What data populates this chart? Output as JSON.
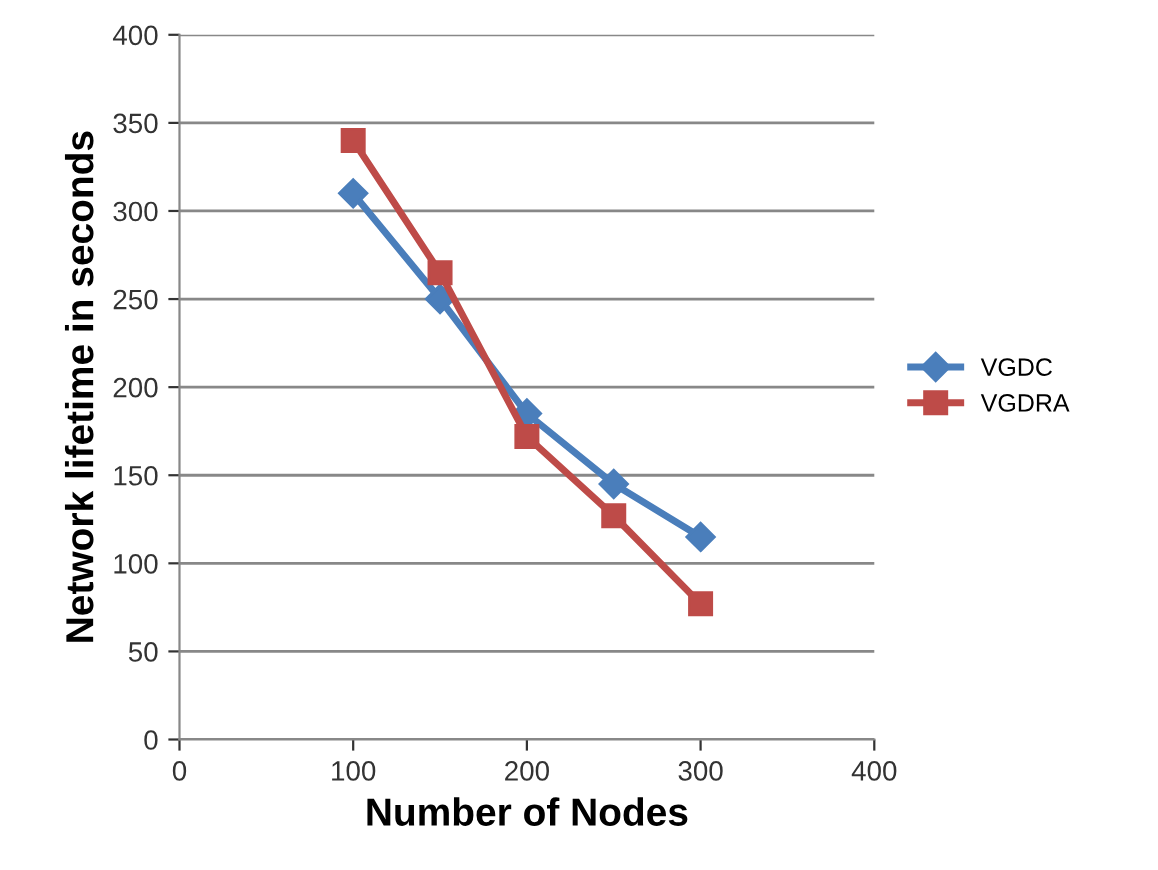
{
  "chart_data": {
    "type": "line",
    "xlabel": "Number of Nodes",
    "ylabel": "Network lifetime in seconds",
    "x": [
      100,
      150,
      200,
      250,
      300
    ],
    "series": [
      {
        "name": "VGDC",
        "color": "#4a7ebb",
        "marker": "diamond",
        "values": [
          310,
          250,
          185,
          145,
          115
        ]
      },
      {
        "name": "VGDRA",
        "color": "#be4b48",
        "marker": "square",
        "values": [
          340,
          265,
          172,
          127,
          77
        ]
      }
    ],
    "xlim": [
      0,
      400
    ],
    "xticks": [
      0,
      100,
      200,
      300,
      400
    ],
    "ylim": [
      0,
      400
    ],
    "yticks": [
      0,
      50,
      100,
      150,
      200,
      250,
      300,
      350,
      400
    ],
    "grid": "y",
    "legend": "right",
    "line_style": "solid"
  }
}
